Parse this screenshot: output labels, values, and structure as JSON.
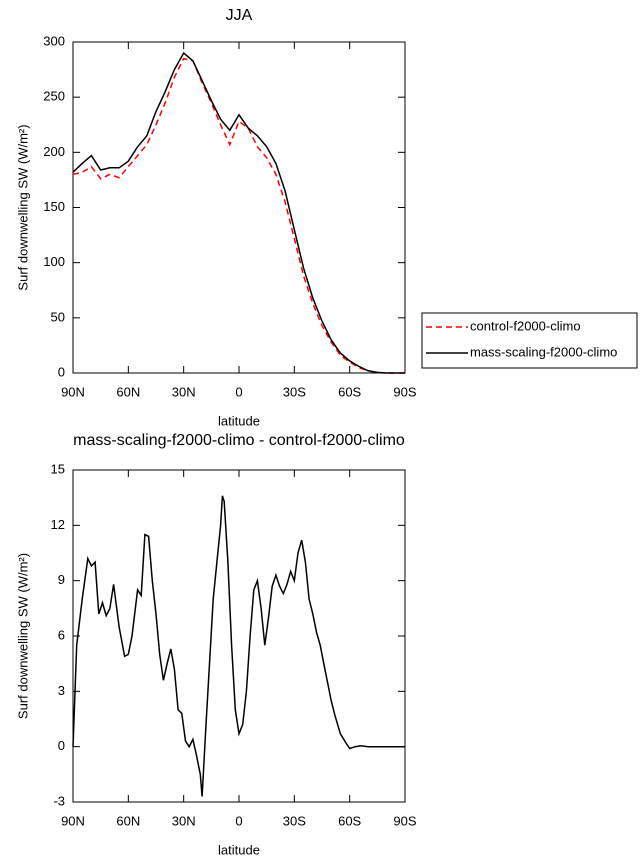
{
  "chart_data": [
    {
      "type": "line",
      "title": "JJA",
      "xlabel": "latitude",
      "ylabel": "Surf downwelling SW (W/m²)",
      "xlim": [
        90,
        -90
      ],
      "xticks": [
        {
          "value": 90,
          "label": "90N"
        },
        {
          "value": 60,
          "label": "60N"
        },
        {
          "value": 30,
          "label": "30N"
        },
        0,
        {
          "value": -30,
          "label": "30S"
        },
        {
          "value": -60,
          "label": "60S"
        },
        {
          "value": -90,
          "label": "90S"
        }
      ],
      "ylim": [
        0,
        300
      ],
      "yticks": [
        0,
        50,
        100,
        150,
        200,
        250,
        300
      ],
      "legend": "right-outside",
      "x": [
        90,
        85,
        80,
        75,
        70,
        65,
        60,
        55,
        50,
        45,
        40,
        35,
        30,
        25,
        20,
        15,
        10,
        5,
        0,
        -5,
        -10,
        -15,
        -20,
        -25,
        -30,
        -35,
        -40,
        -45,
        -50,
        -55,
        -60,
        -65,
        -70,
        -75,
        -80,
        -85,
        -90
      ],
      "series": [
        {
          "name": "control-f2000-climo",
          "color": "#ff0000",
          "dashed": true,
          "values": [
            180,
            182,
            187,
            176,
            180,
            177,
            187,
            197,
            207,
            225,
            245,
            268,
            285,
            283,
            263,
            245,
            225,
            207,
            228,
            222,
            205,
            195,
            180,
            155,
            122,
            88,
            63,
            43,
            28,
            16,
            10,
            5,
            2,
            0.3,
            0,
            0,
            0
          ]
        },
        {
          "name": "mass-scaling-f2000-climo",
          "color": "#000000",
          "dashed": false,
          "values": [
            182,
            190,
            197,
            184,
            186,
            186,
            192,
            205,
            215,
            237,
            255,
            275,
            290,
            283,
            265,
            247,
            230,
            220,
            234,
            222,
            215,
            205,
            190,
            165,
            130,
            95,
            68,
            47,
            30,
            18,
            11,
            6,
            2,
            0.5,
            0,
            0,
            0
          ]
        }
      ]
    },
    {
      "type": "line",
      "title": "mass-scaling-f2000-climo - control-f2000-climo",
      "xlabel": "latitude",
      "ylabel": "Surf downwelling SW (W/m²)",
      "xlim": [
        90,
        -90
      ],
      "xticks": [
        {
          "value": 90,
          "label": "90N"
        },
        {
          "value": 60,
          "label": "60N"
        },
        {
          "value": 30,
          "label": "30N"
        },
        0,
        {
          "value": -30,
          "label": "30S"
        },
        {
          "value": -60,
          "label": "60S"
        },
        {
          "value": -90,
          "label": "90S"
        }
      ],
      "ylim": [
        -3,
        15
      ],
      "yticks": [
        -3,
        0,
        3,
        6,
        9,
        12,
        15
      ],
      "x": [
        90,
        88,
        85,
        82,
        80,
        78,
        76,
        74,
        72,
        70,
        68,
        65,
        62,
        60,
        58,
        55,
        53,
        51,
        49,
        47,
        45,
        43,
        41,
        39,
        37,
        35,
        33,
        31,
        29,
        27,
        25,
        23,
        21,
        20,
        18,
        16,
        14,
        12,
        10,
        9,
        8,
        6,
        4,
        2,
        0,
        -2,
        -4,
        -6,
        -8,
        -10,
        -12,
        -14,
        -16,
        -18,
        -20,
        -22,
        -24,
        -26,
        -28,
        -30,
        -32,
        -34,
        -36,
        -38,
        -40,
        -42,
        -44,
        -46,
        -48,
        -50,
        -52,
        -55,
        -58,
        -60,
        -63,
        -66,
        -70,
        -80,
        -90
      ],
      "series": [
        {
          "color": "#000000",
          "dashed": false,
          "values": [
            0,
            5.5,
            8,
            10.2,
            9.8,
            10,
            7.2,
            7.8,
            7.1,
            7.5,
            8.8,
            6.5,
            4.9,
            5,
            6,
            8.5,
            8.2,
            11.5,
            11.4,
            9,
            7.2,
            5,
            3.6,
            4.5,
            5.3,
            4.2,
            2,
            1.8,
            0.3,
            0,
            0.4,
            -0.5,
            -1.5,
            -2.7,
            1,
            4.5,
            8,
            10,
            12,
            13.6,
            13.3,
            10,
            5.5,
            2,
            0.7,
            1.2,
            3,
            6,
            8.5,
            9,
            7.5,
            5.5,
            7,
            8.7,
            9.3,
            8.7,
            8.3,
            8.8,
            9.5,
            9,
            10.5,
            11.2,
            10,
            8,
            7.2,
            6.2,
            5.5,
            4.5,
            3.5,
            2.5,
            1.7,
            0.7,
            0.2,
            -0.1,
            0,
            0.05,
            0,
            0,
            0
          ]
        }
      ]
    }
  ]
}
